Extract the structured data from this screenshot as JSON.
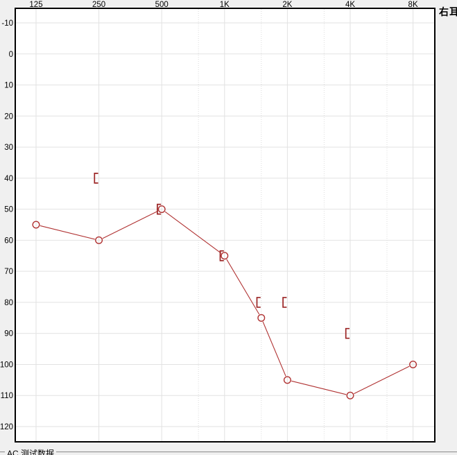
{
  "ear_label": "右耳",
  "footer": {
    "group_label": "AC 测试数据"
  },
  "colors": {
    "background": "#f0f0f0",
    "plot_bg": "#ffffff",
    "grid": "#e2e2e2",
    "grid_minor": "#dcdcdc",
    "border": "#000000",
    "ac": "#b03232",
    "bc": "#9b2424",
    "label": "#000000",
    "groupbox_line": "#8a8a8a"
  },
  "chart_data": {
    "type": "line",
    "chart_kind": "audiogram",
    "title": "右耳",
    "x_axis": {
      "scale": "log2",
      "tick_labels": [
        "125",
        "250",
        "500",
        "1K",
        "2K",
        "4K",
        "8K"
      ],
      "tick_freqs_hz": [
        125,
        250,
        500,
        1000,
        2000,
        4000,
        8000
      ],
      "minor_freqs_hz": [
        750,
        1500,
        3000,
        6000
      ]
    },
    "y_axis": {
      "unit": "dB HL",
      "ticks": [
        -10,
        0,
        10,
        20,
        30,
        40,
        50,
        60,
        70,
        80,
        90,
        100,
        110,
        120
      ],
      "range": [
        -10,
        120
      ],
      "inverted": true,
      "grid": true
    },
    "legend": "none",
    "series": [
      {
        "name": "AC",
        "symbol": "circle",
        "connected": true,
        "color": "#b03232",
        "points": [
          {
            "freq_hz": 125,
            "db": 55
          },
          {
            "freq_hz": 250,
            "db": 60
          },
          {
            "freq_hz": 500,
            "db": 50
          },
          {
            "freq_hz": 1000,
            "db": 65
          },
          {
            "freq_hz": 1500,
            "db": 85
          },
          {
            "freq_hz": 2000,
            "db": 105
          },
          {
            "freq_hz": 4000,
            "db": 110
          },
          {
            "freq_hz": 8000,
            "db": 100
          }
        ]
      },
      {
        "name": "BC-masked",
        "symbol": "left-bracket",
        "connected": false,
        "color": "#9b2424",
        "points": [
          {
            "freq_hz": 250,
            "db": 40
          },
          {
            "freq_hz": 500,
            "db": 50
          },
          {
            "freq_hz": 1000,
            "db": 65
          },
          {
            "freq_hz": 1500,
            "db": 80
          },
          {
            "freq_hz": 2000,
            "db": 80
          },
          {
            "freq_hz": 4000,
            "db": 90
          }
        ]
      }
    ]
  }
}
